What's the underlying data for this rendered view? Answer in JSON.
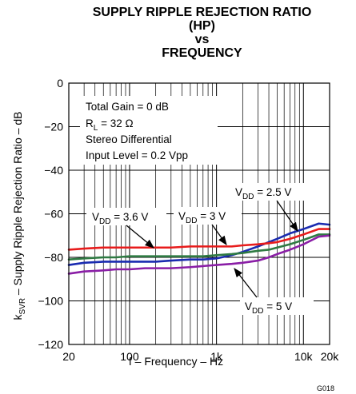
{
  "chart_data": {
    "type": "line",
    "title_lines": [
      "SUPPLY RIPPLE REJECTION RATIO",
      "(HP)",
      "vs",
      "FREQUENCY"
    ],
    "xlabel": "f – Frequency – Hz",
    "ylabel_pre": "k",
    "ylabel_sub": "SVR",
    "ylabel_post": " – Supply Ripple Rejection Ratio – dB",
    "xscale": "log",
    "xlim": [
      20,
      20000
    ],
    "ylim": [
      -120,
      0
    ],
    "grid": true,
    "x_ticks": [
      {
        "value": 20,
        "label": "20"
      },
      {
        "value": 100,
        "label": "100"
      },
      {
        "value": 1000,
        "label": "1k"
      },
      {
        "value": 10000,
        "label": "10k"
      },
      {
        "value": 20000,
        "label": "20k"
      }
    ],
    "y_ticks": [
      {
        "value": 0,
        "label": "0"
      },
      {
        "value": -20,
        "label": "−20"
      },
      {
        "value": -40,
        "label": "−40"
      },
      {
        "value": -60,
        "label": "−60"
      },
      {
        "value": -80,
        "label": "−80"
      },
      {
        "value": -100,
        "label": "−100"
      },
      {
        "value": -120,
        "label": "−120"
      }
    ],
    "conditions": [
      "Total Gain = 0 dB",
      "R",
      "L",
      " = 32 Ω",
      "Stereo Differential",
      "Input Level = 0.2 Vpp"
    ],
    "series": [
      {
        "name_pre": "V",
        "name_sub": "DD",
        "name_post": " = 2.5 V",
        "color": "#1a2bb0",
        "x": [
          20,
          30,
          50,
          70,
          100,
          150,
          200,
          300,
          500,
          700,
          1000,
          1500,
          2000,
          3000,
          4000,
          5000,
          7000,
          10000,
          15000,
          20000
        ],
        "y": [
          -83.5,
          -82.5,
          -82,
          -82,
          -82,
          -82,
          -82,
          -81.5,
          -81,
          -81,
          -80.5,
          -79,
          -77.5,
          -75,
          -73,
          -71.5,
          -69,
          -67,
          -64.5,
          -65
        ]
      },
      {
        "name_pre": "V",
        "name_sub": "DD",
        "name_post": " = 3.6 V",
        "color": "#e81c1c",
        "x": [
          20,
          30,
          50,
          70,
          100,
          150,
          200,
          300,
          500,
          700,
          1000,
          1500,
          2000,
          3000,
          4000,
          5000,
          7000,
          10000,
          15000,
          20000
        ],
        "y": [
          -76.5,
          -76,
          -75.5,
          -75.5,
          -75.5,
          -75.5,
          -75.5,
          -75.5,
          -75,
          -75,
          -75,
          -75,
          -74.5,
          -74,
          -73.5,
          -73,
          -71.5,
          -69.5,
          -67,
          -67
        ]
      },
      {
        "name_pre": "V",
        "name_sub": "DD",
        "name_post": " = 3 V",
        "color": "#2e7a42",
        "x": [
          20,
          30,
          50,
          70,
          100,
          150,
          200,
          300,
          500,
          700,
          1000,
          1500,
          2000,
          3000,
          4000,
          5000,
          7000,
          10000,
          15000,
          20000
        ],
        "y": [
          -81,
          -80.5,
          -80,
          -80,
          -79.5,
          -79.5,
          -79.5,
          -79.5,
          -79.5,
          -79.5,
          -79,
          -78.5,
          -78,
          -77,
          -76.5,
          -75.5,
          -74,
          -72,
          -69.5,
          -69.5
        ]
      },
      {
        "name_pre": "V",
        "name_sub": "DD",
        "name_post": " = 5 V",
        "color": "#8a1ea6",
        "x": [
          20,
          30,
          50,
          70,
          100,
          150,
          200,
          300,
          500,
          700,
          1000,
          1500,
          2000,
          3000,
          4000,
          5000,
          7000,
          10000,
          15000,
          20000
        ],
        "y": [
          -87.5,
          -86.5,
          -86,
          -85.5,
          -85.5,
          -85,
          -85,
          -85,
          -84.5,
          -84,
          -83.5,
          -83,
          -82.5,
          -81.5,
          -80,
          -78.5,
          -76.5,
          -74,
          -70.5,
          -70
        ]
      }
    ],
    "figure_code": "G018"
  }
}
